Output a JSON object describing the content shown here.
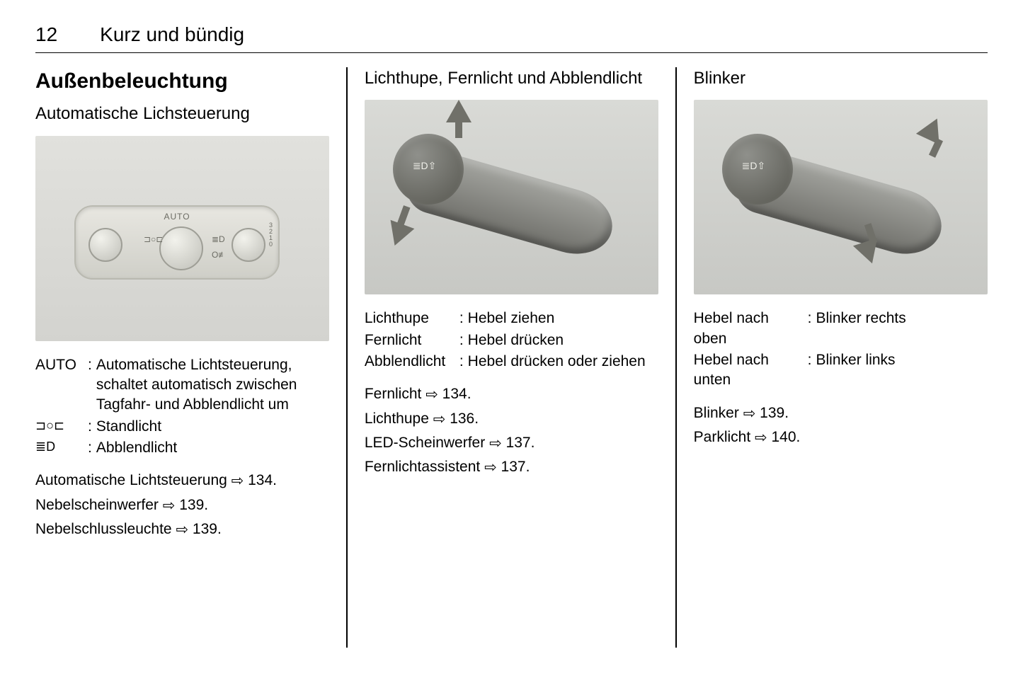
{
  "page": {
    "number": "12",
    "chapter": "Kurz und bündig"
  },
  "col1": {
    "section": "Außenbeleuchtung",
    "subsection": "Automatische Lichsteuerung",
    "figure": {
      "auto": "AUTO"
    },
    "defs": [
      {
        "term": "AUTO",
        "val": "Automatische Lichtsteuerung, schaltet automatisch zwischen Tagfahr- und Abblendlicht um"
      },
      {
        "term": "⊐○⊏",
        "val": "Standlicht"
      },
      {
        "term": "≣D",
        "val": "Abblendlicht"
      }
    ],
    "refs": [
      {
        "text": "Automatische Lichtsteuerung",
        "page": "134"
      },
      {
        "text": "Nebelscheinwerfer",
        "page": "139"
      },
      {
        "text": "Nebelschlussleuchte",
        "page": "139"
      }
    ]
  },
  "col2": {
    "heading": "Lichthupe, Fernlicht und Abblendlicht",
    "defs": [
      {
        "term": "Lichthupe",
        "val": "Hebel ziehen"
      },
      {
        "term": "Fernlicht",
        "val": "Hebel drücken"
      },
      {
        "term": "Abblendlicht",
        "val": "Hebel drücken oder ziehen"
      }
    ],
    "refs": [
      {
        "text": "Fernlicht",
        "page": "134"
      },
      {
        "text": "Lichthupe",
        "page": "136"
      },
      {
        "text": "LED-Scheinwerfer",
        "page": "137"
      },
      {
        "text": "Fernlichtassistent",
        "page": "137"
      }
    ]
  },
  "col3": {
    "heading": "Blinker",
    "defs": [
      {
        "term": "Hebel nach oben",
        "val": "Blinker rechts"
      },
      {
        "term": "Hebel nach unten",
        "val": "Blinker links"
      }
    ],
    "refs": [
      {
        "text": "Blinker",
        "page": "139"
      },
      {
        "text": "Parklicht",
        "page": "140"
      }
    ]
  },
  "glyphs": {
    "ref": "⇨"
  },
  "term_widths": {
    "col1": "68px",
    "col2": "128px",
    "col3": "155px"
  }
}
